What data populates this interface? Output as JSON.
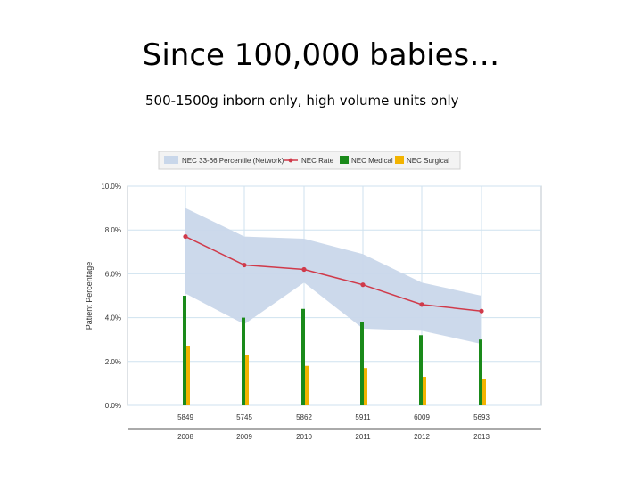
{
  "slide": {
    "title": "Since 100,000 babies…",
    "subtitle": "500-1500g inborn only, high volume units only"
  },
  "colors": {
    "band": "#c9d7ea",
    "rate": "#d03a4a",
    "medical": "#1a8a1a",
    "surgical": "#f2b300",
    "grid": "#cfe2ef"
  },
  "chart_data": {
    "type": "bar",
    "title": "",
    "xlabel": "",
    "ylabel": "Patient Percentage",
    "ylim": [
      0,
      10
    ],
    "yticks": [
      "0.0%",
      "2.0%",
      "4.0%",
      "6.0%",
      "8.0%",
      "10.0%"
    ],
    "categories": [
      "2008",
      "2009",
      "2010",
      "2011",
      "2012",
      "2013"
    ],
    "counts": [
      "5849",
      "5745",
      "5862",
      "5911",
      "6009",
      "5693"
    ],
    "legend_position": "top",
    "legend": [
      {
        "label": "NEC 33-66 Percentile (Network)",
        "kind": "band"
      },
      {
        "label": "NEC Rate",
        "kind": "line"
      },
      {
        "label": "NEC Medical",
        "kind": "medical"
      },
      {
        "label": "NEC Surgical",
        "kind": "surgical"
      }
    ],
    "band": {
      "name": "NEC 33-66 Percentile (Network)",
      "upper": [
        9.0,
        7.7,
        7.6,
        6.9,
        5.6,
        5.0
      ],
      "lower": [
        5.1,
        3.7,
        5.6,
        3.5,
        3.4,
        2.8
      ]
    },
    "series": [
      {
        "name": "NEC Rate",
        "type": "line",
        "values": [
          7.7,
          6.4,
          6.2,
          5.5,
          4.6,
          4.3
        ]
      },
      {
        "name": "NEC Medical",
        "type": "bar",
        "values": [
          5.0,
          4.0,
          4.4,
          3.8,
          3.2,
          3.0
        ]
      },
      {
        "name": "NEC Surgical",
        "type": "bar",
        "values": [
          2.7,
          2.3,
          1.8,
          1.7,
          1.3,
          1.2
        ]
      }
    ]
  }
}
